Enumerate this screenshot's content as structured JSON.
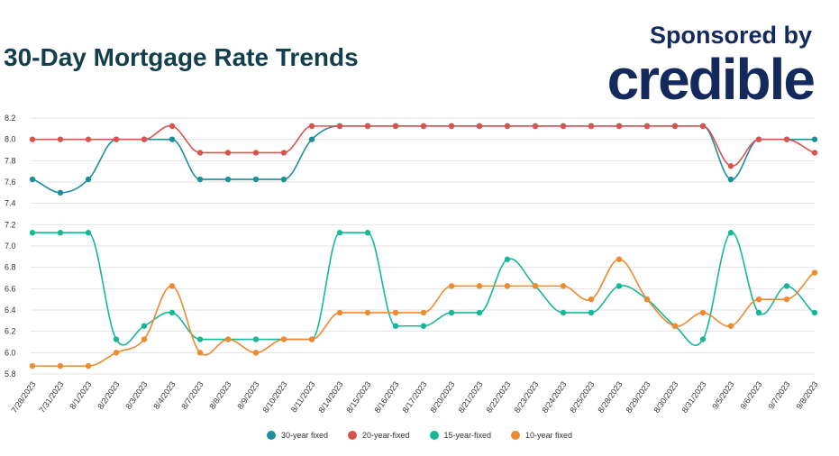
{
  "header": {
    "title": "30-Day Mortgage Rate Trends",
    "sponsor_label": "Sponsored by",
    "brand": "credible"
  },
  "colors": {
    "brand": "#14295c",
    "title": "#123f4a"
  },
  "chart_data": {
    "type": "line",
    "categories": [
      "7/28/2023",
      "7/31/2023",
      "8/1/2023",
      "8/2/2023",
      "8/3/2023",
      "8/4/2023",
      "8/7/2023",
      "8/8/2023",
      "8/9/2023",
      "8/10/2023",
      "8/11/2023",
      "8/14/2023",
      "8/15/2023",
      "8/16/2023",
      "8/17/2023",
      "8/20/2023",
      "8/21/2023",
      "8/22/2023",
      "8/23/2023",
      "8/24/2023",
      "8/25/2023",
      "8/28/2023",
      "8/29/2023",
      "8/30/2023",
      "8/31/2023",
      "9/5/2023",
      "9/6/2023",
      "9/7/2023",
      "9/8/2023"
    ],
    "ylim": [
      5.8,
      8.2
    ],
    "yticks": [
      "5.8",
      "6.0",
      "6.2",
      "6.4",
      "6.6",
      "6.8",
      "7.0",
      "7.2",
      "7.4",
      "7.6",
      "7.8",
      "8.0",
      "8.2"
    ],
    "grid": true,
    "legend_position": "bottom",
    "series": [
      {
        "name": "30-year fixed",
        "color": "#1d8f9a",
        "values": [
          7.625,
          7.5,
          7.625,
          8.0,
          8.0,
          8.0,
          7.625,
          7.625,
          7.625,
          7.625,
          8.0,
          8.125,
          8.125,
          8.125,
          8.125,
          8.125,
          8.125,
          8.125,
          8.125,
          8.125,
          8.125,
          8.125,
          8.125,
          8.125,
          8.125,
          7.625,
          8.0,
          8.0,
          8.0
        ]
      },
      {
        "name": "20-year-fixed",
        "color": "#d9534f",
        "values": [
          8.0,
          8.0,
          8.0,
          8.0,
          8.0,
          8.125,
          7.875,
          7.875,
          7.875,
          7.875,
          8.125,
          8.125,
          8.125,
          8.125,
          8.125,
          8.125,
          8.125,
          8.125,
          8.125,
          8.125,
          8.125,
          8.125,
          8.125,
          8.125,
          8.125,
          7.75,
          8.0,
          8.0,
          7.875
        ]
      },
      {
        "name": "15-year-fixed",
        "color": "#17b897",
        "values": [
          7.125,
          7.125,
          7.125,
          6.125,
          6.25,
          6.375,
          6.125,
          6.125,
          6.125,
          6.125,
          6.125,
          7.125,
          7.125,
          6.25,
          6.25,
          6.375,
          6.375,
          6.875,
          6.625,
          6.375,
          6.375,
          6.625,
          6.5,
          6.25,
          6.125,
          7.125,
          6.375,
          6.625,
          6.375
        ]
      },
      {
        "name": "10-year fixed",
        "color": "#ee8a2f",
        "values": [
          5.875,
          5.875,
          5.875,
          6.0,
          6.125,
          6.625,
          6.0,
          6.125,
          6.0,
          6.125,
          6.125,
          6.375,
          6.375,
          6.375,
          6.375,
          6.625,
          6.625,
          6.625,
          6.625,
          6.625,
          6.5,
          6.875,
          6.5,
          6.25,
          6.375,
          6.25,
          6.5,
          6.5,
          6.75
        ]
      }
    ]
  }
}
